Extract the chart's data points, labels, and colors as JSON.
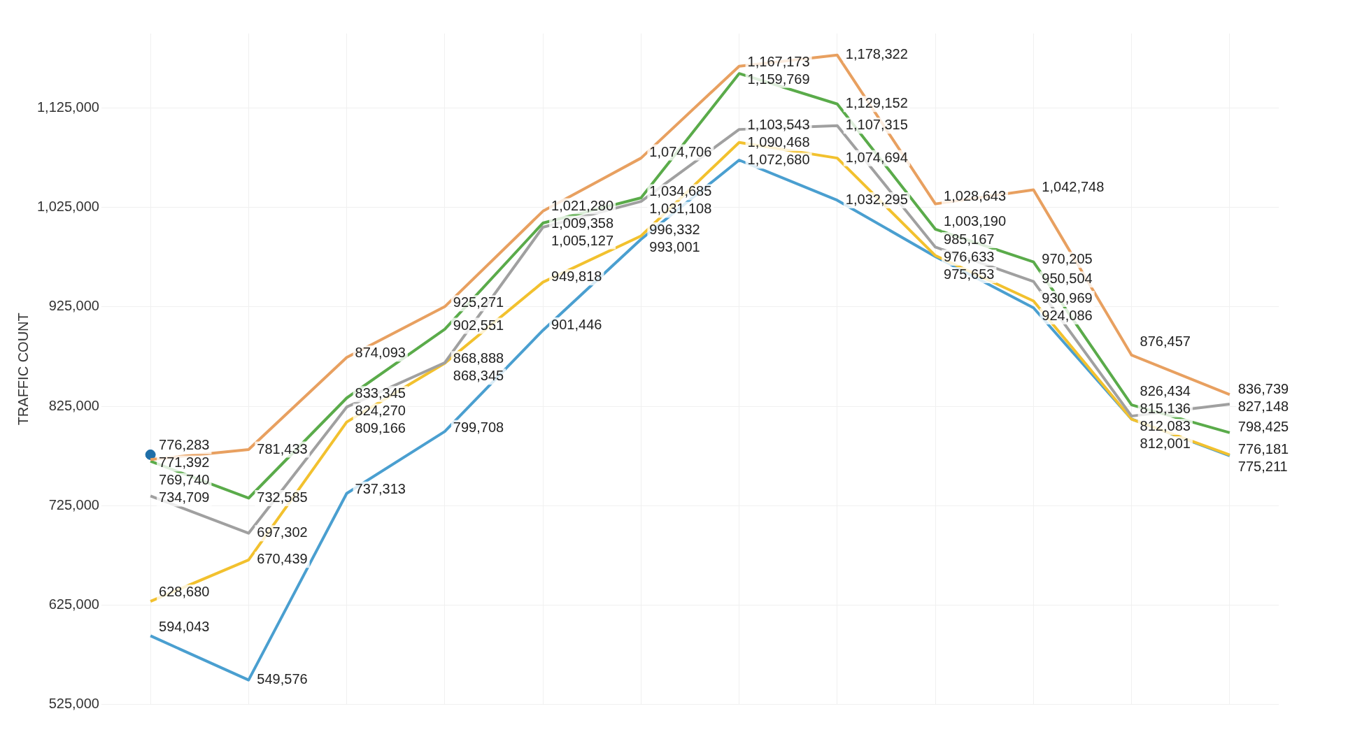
{
  "chart_data": {
    "type": "line",
    "ylabel": "TRAFFIC COUNT",
    "categories": [
      null,
      null,
      null,
      null,
      null,
      null,
      null,
      null,
      null,
      null,
      null,
      null
    ],
    "ylim": [
      525000,
      1200000
    ],
    "yticks": [
      {
        "value": 525000,
        "label": "525,000"
      },
      {
        "value": 625000,
        "label": "625,000"
      },
      {
        "value": 725000,
        "label": "725,000"
      },
      {
        "value": 825000,
        "label": "825,000"
      },
      {
        "value": 925000,
        "label": "925,000"
      },
      {
        "value": 1025000,
        "label": "1,025,000"
      },
      {
        "value": 1125000,
        "label": "1,125,000"
      }
    ],
    "grid": true,
    "legend": false,
    "marker": "none",
    "line_style": "solid",
    "series": [
      {
        "color": "#e8a060",
        "values": [
          771392,
          781433,
          874093,
          925271,
          1021280,
          1074706,
          1167173,
          1178322,
          1028643,
          1042748,
          876457,
          836739
        ],
        "value_labels": [
          "771,392",
          "781,433",
          "874,093",
          "925,271",
          "1,021,280",
          "1,074,706",
          "1,167,173",
          "1,178,322",
          "1,028,643",
          "1,042,748",
          "876,457",
          "836,739"
        ]
      },
      {
        "color": "#5aab4a",
        "values": [
          769740,
          732585,
          833345,
          902551,
          1009358,
          1034685,
          1159769,
          1129152,
          1003190,
          970205,
          826434,
          798425
        ],
        "value_labels": [
          "769,740",
          "732,585",
          "833,345",
          "902,551",
          "1,009,358",
          "1,034,685",
          "1,159,769",
          "1,129,152",
          "1,003,190",
          "970,205",
          "826,434",
          "798,425"
        ]
      },
      {
        "color": "#a0a0a0",
        "values": [
          734709,
          697302,
          824270,
          868888,
          1005127,
          1031108,
          1103543,
          1107315,
          985167,
          950504,
          815136,
          827148
        ],
        "value_labels": [
          "734,709",
          "697,302",
          "824,270",
          "868,888",
          "1,005,127",
          "1,031,108",
          "1,103,543",
          "1,107,315",
          "985,167",
          "950,504",
          "815,136",
          "827,148"
        ]
      },
      {
        "color": "#f2c12e",
        "values": [
          628680,
          670439,
          809166,
          868345,
          949818,
          996332,
          1090468,
          1074694,
          976633,
          930969,
          812001,
          776181
        ],
        "value_labels": [
          "628,680",
          "670,439",
          "809,166",
          "868,345",
          "949,818",
          "996,332",
          "1,090,468",
          "1,074,694",
          "976,633",
          "930,969",
          "812,001",
          "776,181"
        ]
      },
      {
        "color": "#4a9fd0",
        "values": [
          594043,
          549576,
          737313,
          799708,
          901446,
          993001,
          1072680,
          1032295,
          975653,
          924086,
          812083,
          775211
        ],
        "value_labels": [
          "594,043",
          "549,576",
          "737,313",
          "799,708",
          "901,446",
          "993,001",
          "1,072,680",
          "1,032,295",
          "975,653",
          "924,086",
          "812,083",
          "775,211"
        ]
      },
      {
        "type": "scatter",
        "color": "#1f6fa8",
        "marker": "circle",
        "values": [
          776283,
          null,
          null,
          null,
          null,
          null,
          null,
          null,
          null,
          null,
          null,
          null
        ],
        "value_labels": [
          "776,283",
          null,
          null,
          null,
          null,
          null,
          null,
          null,
          null,
          null,
          null,
          null
        ]
      }
    ]
  }
}
